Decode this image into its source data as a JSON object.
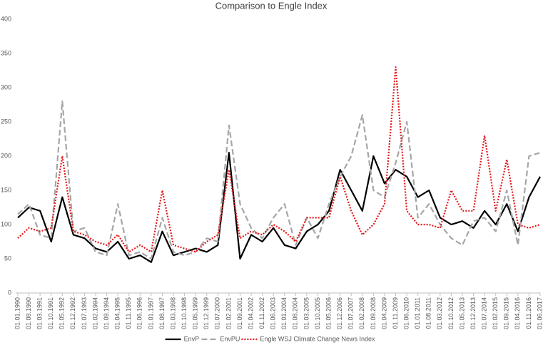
{
  "chart_data": {
    "type": "line",
    "title": "Comparison to Engle Index",
    "categories": [
      "01.01.1990",
      "01.08.1990",
      "01.03.1991",
      "01.10.1991",
      "01.05.1992",
      "01.12.1992",
      "01.07.1993",
      "01.02.1994",
      "01.09.1994",
      "01.04.1995",
      "01.11.1995",
      "01.06.1996",
      "01.01.1997",
      "01.08.1997",
      "01.03.1998",
      "01.10.1998",
      "01.05.1999",
      "01.12.1999",
      "01.07.2000",
      "01.02.2001",
      "01.09.2001",
      "01.04.2002",
      "01.11.2002",
      "01.06.2003",
      "01.01.2004",
      "01.08.2004",
      "01.03.2005",
      "01.10.2005",
      "01.05.2006",
      "01.12.2006",
      "01.07.2007",
      "01.02.2008",
      "01.09.2008",
      "01.04.2009",
      "01.11.2009",
      "01.06.2010",
      "01.01.2011",
      "01.08.2011",
      "01.03.2012",
      "01.10.2012",
      "01.05.2013",
      "01.12.2013",
      "01.07.2014",
      "01.02.2015",
      "01.09.2015",
      "01.04.2016",
      "01.11.2016",
      "01.06.2017"
    ],
    "series": [
      {
        "name": "EnvP",
        "color": "#000000",
        "dash": "solid",
        "values": [
          110,
          125,
          120,
          75,
          140,
          85,
          80,
          65,
          60,
          75,
          50,
          55,
          45,
          90,
          55,
          60,
          65,
          60,
          70,
          205,
          50,
          85,
          75,
          95,
          70,
          65,
          90,
          100,
          120,
          180,
          150,
          120,
          200,
          160,
          180,
          170,
          140,
          150,
          110,
          100,
          105,
          95,
          120,
          100,
          130,
          90,
          140,
          170
        ]
      },
      {
        "name": "EnvPU",
        "color": "#a6a6a6",
        "dash": "dash",
        "values": [
          115,
          130,
          85,
          80,
          280,
          90,
          95,
          60,
          55,
          130,
          55,
          60,
          50,
          110,
          60,
          55,
          60,
          80,
          75,
          245,
          130,
          95,
          80,
          110,
          130,
          70,
          110,
          80,
          130,
          170,
          200,
          260,
          150,
          140,
          190,
          250,
          110,
          130,
          100,
          80,
          70,
          105,
          110,
          90,
          150,
          70,
          200,
          205
        ]
      },
      {
        "name": "Engle WSJ Climate Change News Index",
        "color": "#e31a1c",
        "dash": "dot",
        "values": [
          80,
          95,
          90,
          95,
          200,
          90,
          85,
          75,
          70,
          85,
          60,
          70,
          60,
          150,
          70,
          65,
          60,
          75,
          85,
          180,
          80,
          90,
          85,
          100,
          90,
          75,
          110,
          110,
          110,
          170,
          120,
          85,
          100,
          130,
          330,
          120,
          100,
          100,
          95,
          150,
          120,
          120,
          230,
          120,
          195,
          100,
          95,
          100
        ]
      }
    ],
    "ylim": [
      0,
      400
    ],
    "yticks": [
      0,
      50,
      100,
      150,
      200,
      250,
      300,
      350,
      400
    ],
    "grid": false,
    "legend": "bottom"
  }
}
